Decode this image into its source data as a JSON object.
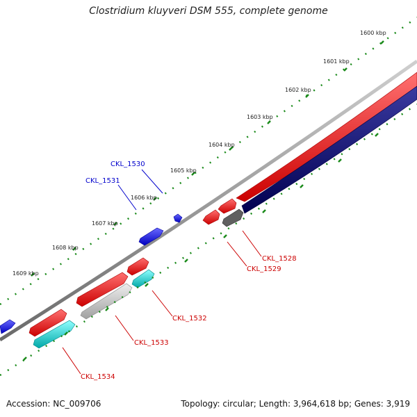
{
  "title": "Clostridium kluyveri DSM 555, complete genome",
  "footer": {
    "accession": "Accession: NC_009706",
    "summary": "Topology: circular; Length: 3,964,618 bp; Genes: 3,919"
  },
  "scale_labels": [
    "1600 kbp",
    "1601 kbp",
    "1602 kbp",
    "1603 kbp",
    "1604 kbp",
    "1605 kbp",
    "1606 kbp",
    "1607 kbp",
    "1608 kbp",
    "1609 kbp"
  ],
  "gene_labels": [
    {
      "text": "CKL_1530",
      "color": "#0000cc"
    },
    {
      "text": "CKL_1531",
      "color": "#0000cc"
    },
    {
      "text": "CKL_1528",
      "color": "#cc0000"
    },
    {
      "text": "CKL_1529",
      "color": "#cc0000"
    },
    {
      "text": "CKL_1532",
      "color": "#cc0000"
    },
    {
      "text": "CKL_1533",
      "color": "#cc0000"
    },
    {
      "text": "CKL_1534",
      "color": "#cc0000"
    }
  ],
  "colors": {
    "backbone": "#8a8a8a",
    "forward_cds": "#ff0000",
    "reverse_cds": "#0a0a80",
    "blue_feature": "#0000ff",
    "gray_feature": "#b0b0b0",
    "dark_feature": "#555555",
    "cyan_feature": "#00e0e0",
    "tick": "#1a8a1a"
  }
}
